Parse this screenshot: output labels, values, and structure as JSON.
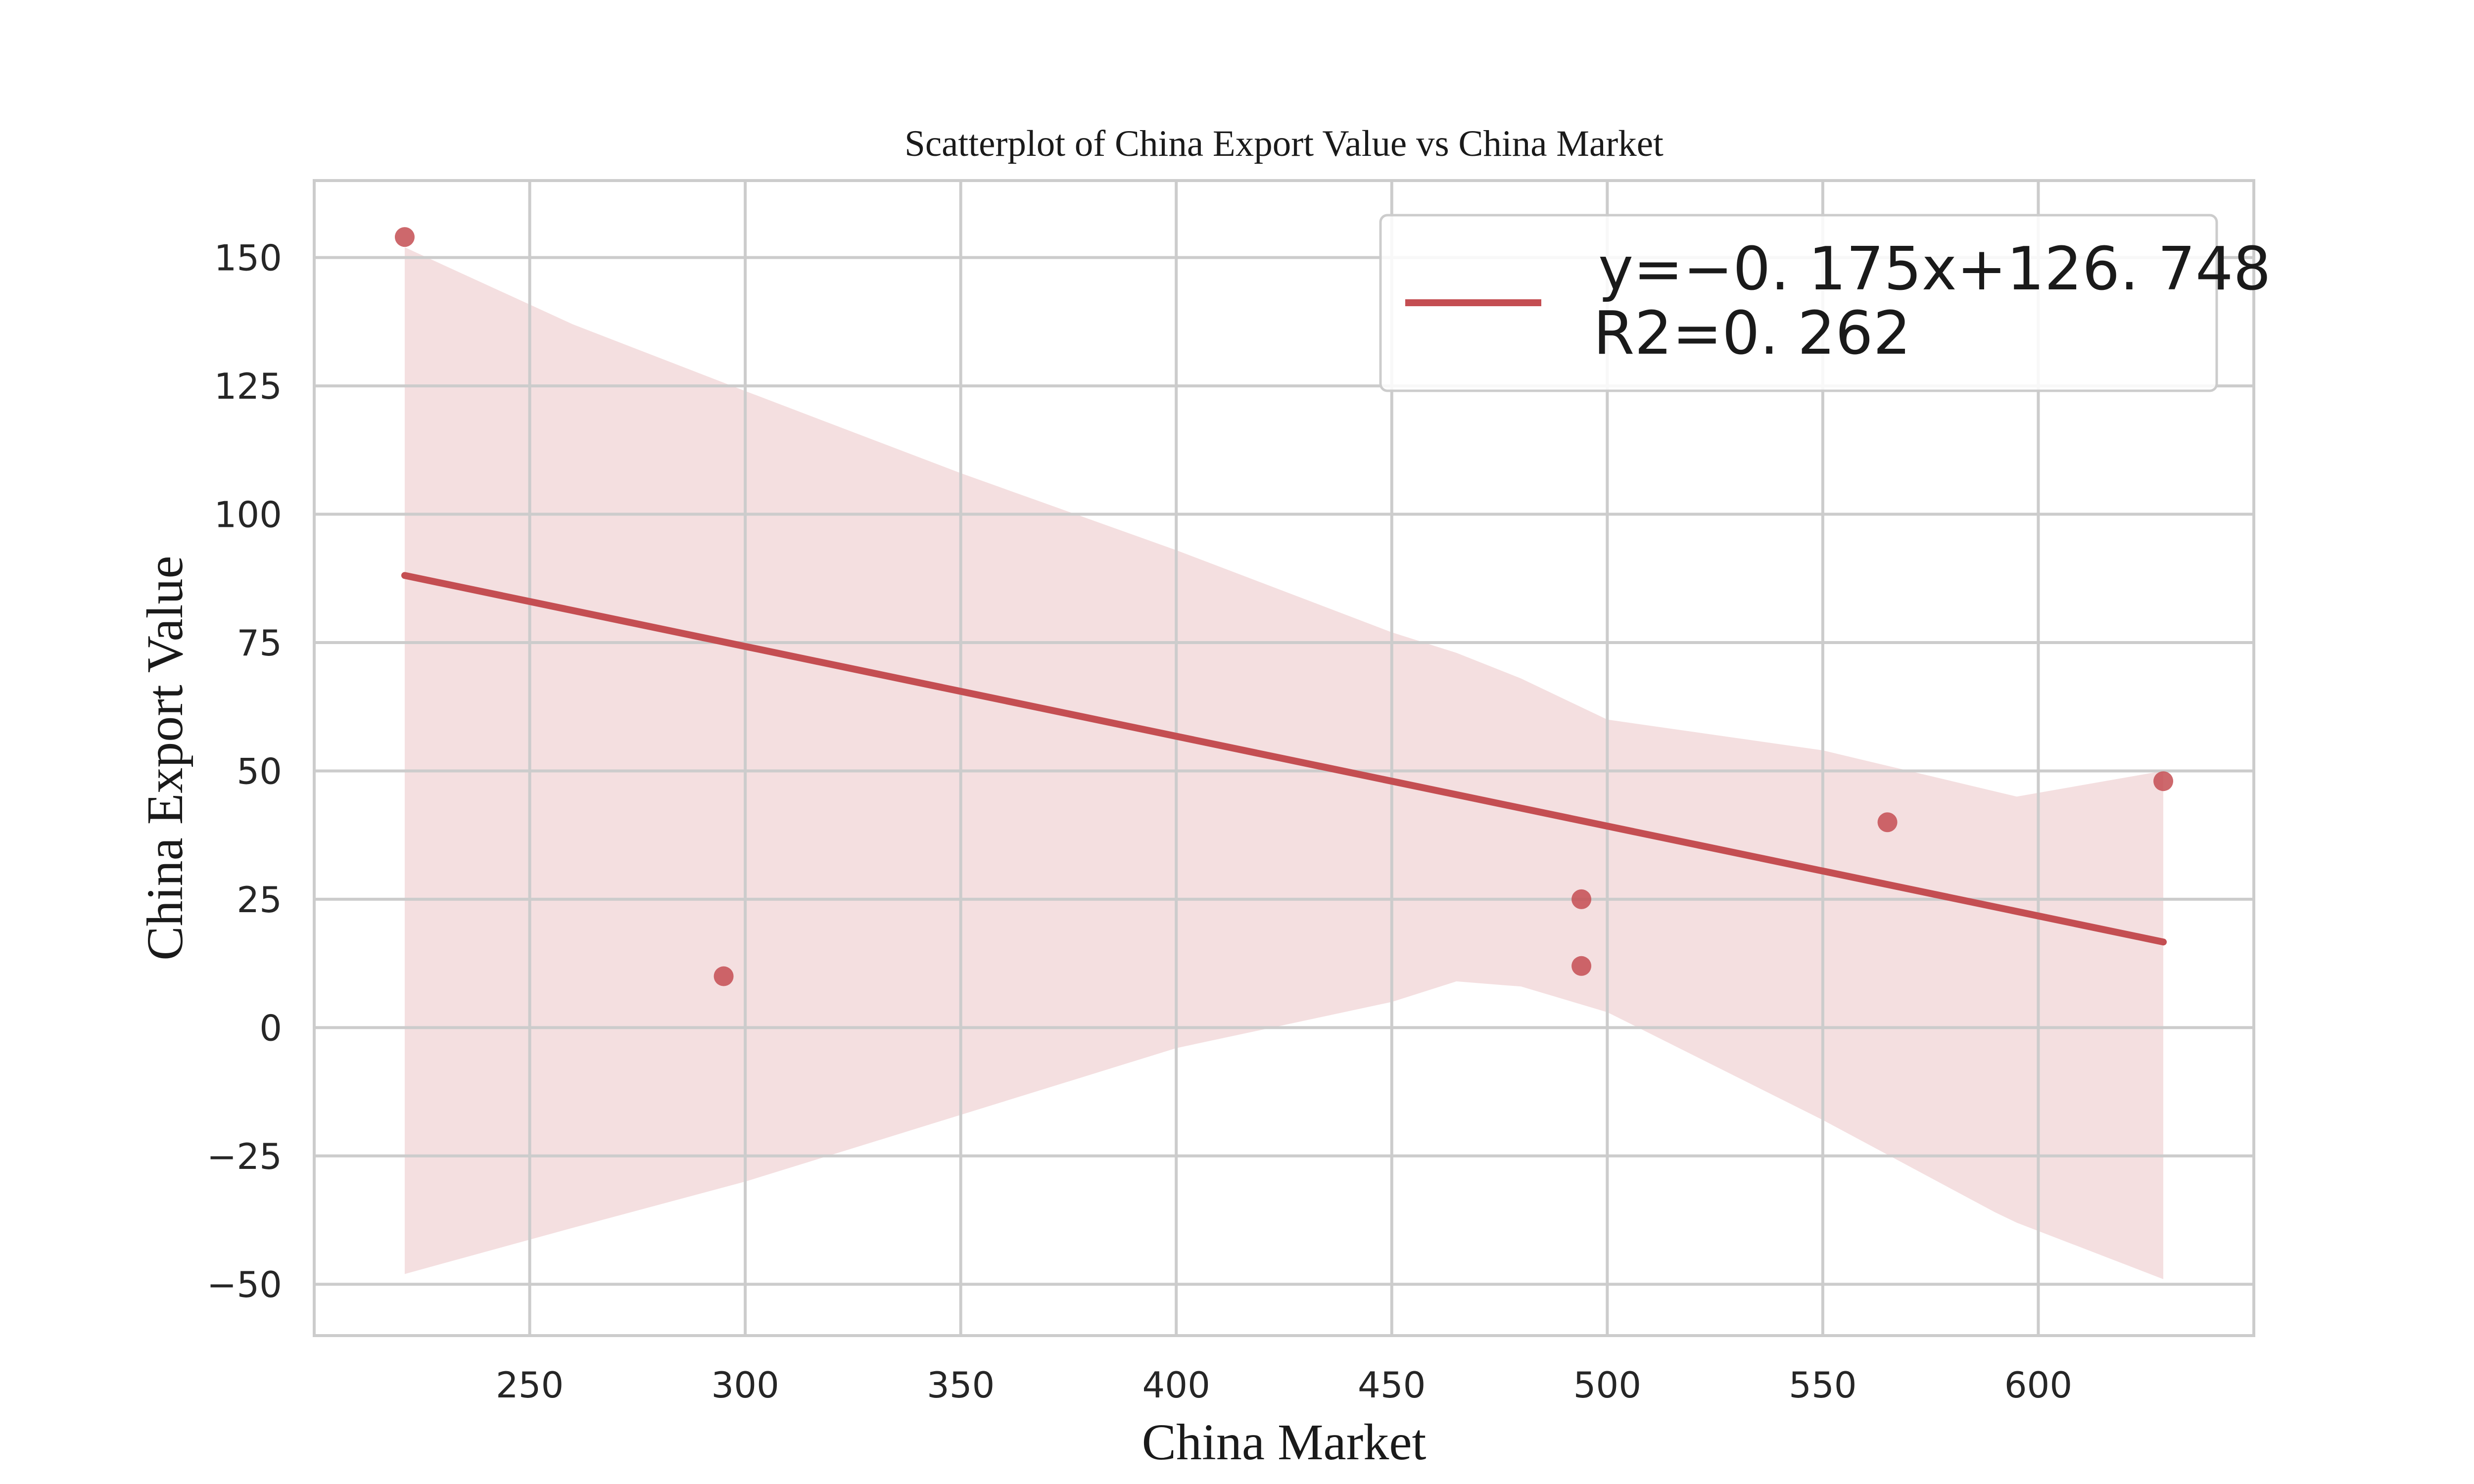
{
  "chart_data": {
    "type": "scatter",
    "title": "Scatterplot of China Export Value vs China Market",
    "xlabel": "China Market",
    "ylabel": "China Export Value",
    "xlim": [
      200,
      650
    ],
    "ylim": [
      -60,
      165
    ],
    "xticks": [
      250,
      300,
      350,
      400,
      450,
      500,
      550,
      600
    ],
    "yticks": [
      -50,
      -25,
      0,
      25,
      50,
      75,
      100,
      125,
      150
    ],
    "grid": true,
    "legend_position": "top-right",
    "legend": {
      "line1": "y=−0. 175x+126. 748",
      "line2": "R2=0. 262"
    },
    "series": [
      {
        "points": [
          {
            "x": 221,
            "y": 154
          },
          {
            "x": 295,
            "y": 10
          },
          {
            "x": 494,
            "y": 25
          },
          {
            "x": 494,
            "y": 12
          },
          {
            "x": 565,
            "y": 40
          },
          {
            "x": 629,
            "y": 48
          }
        ]
      }
    ],
    "regression": {
      "slope": -0.175,
      "intercept": 126.748,
      "x_range": [
        221,
        629
      ]
    },
    "confidence_band": {
      "x": [
        221,
        260,
        300,
        350,
        400,
        450,
        465,
        480,
        500,
        550,
        590,
        595,
        629
      ],
      "upper": [
        152,
        137,
        124,
        108,
        93,
        77,
        73,
        68,
        60,
        54,
        46,
        45,
        50
      ],
      "lower": [
        -48,
        -39,
        -30,
        -17,
        -4,
        5,
        9,
        8,
        3,
        -18,
        -36,
        -38,
        -49
      ]
    },
    "colors": {
      "accent": "#c44e52",
      "band": "#f4dfe0",
      "grid": "#cccccc",
      "frame": "#cccccc",
      "background": "#ffffff"
    }
  }
}
